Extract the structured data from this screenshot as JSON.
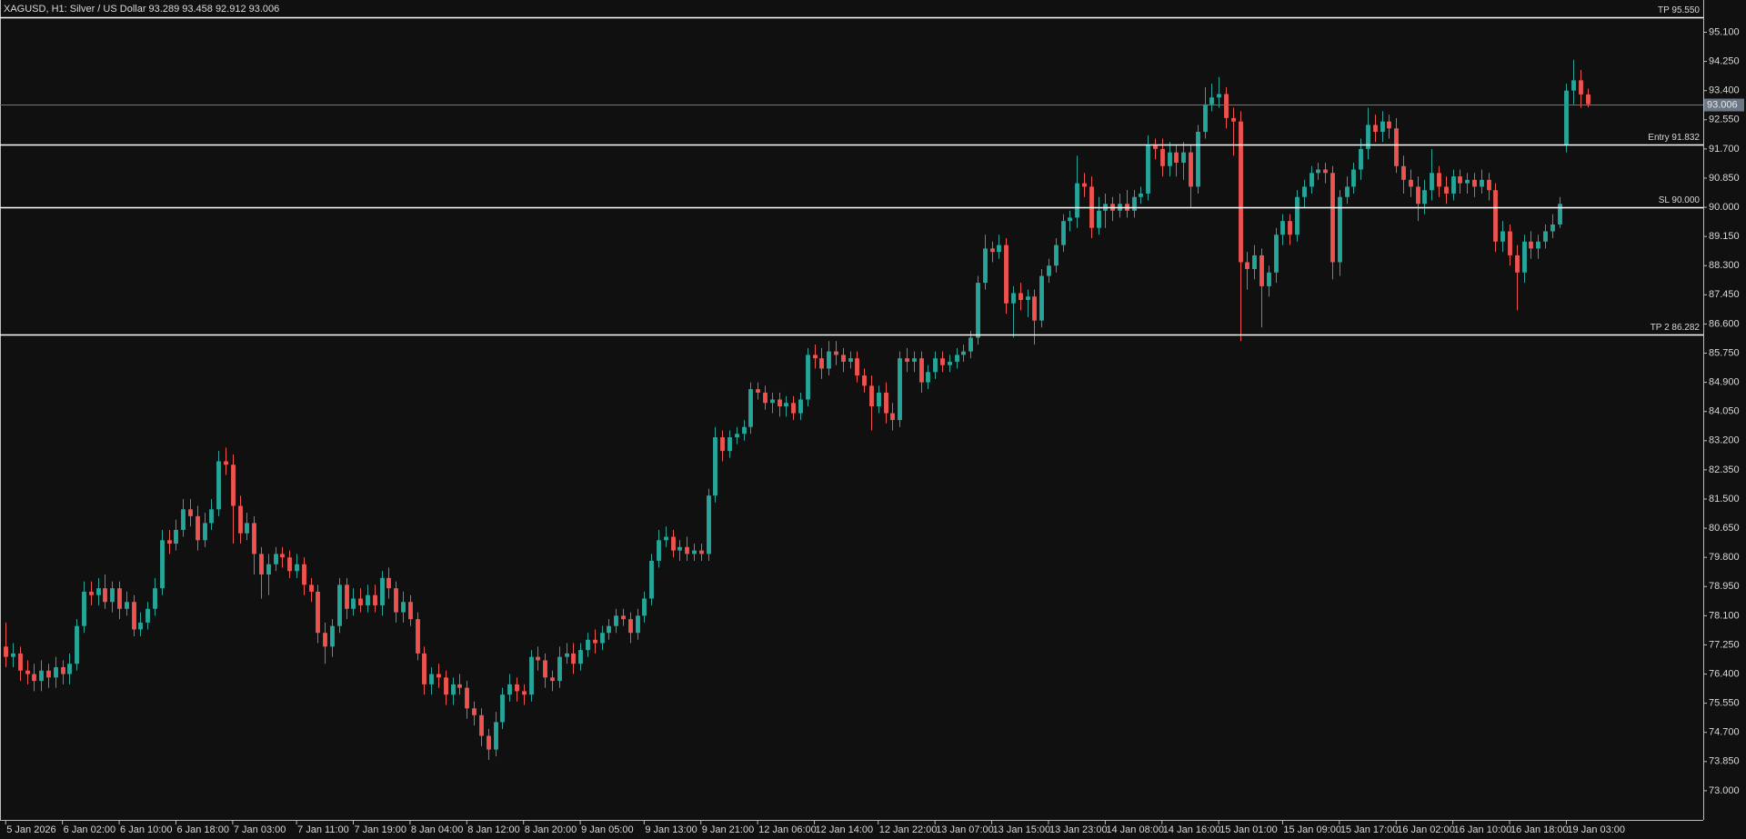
{
  "chart_data": {
    "type": "candlestick",
    "title": "XAGUSD, H1:  Silver / US Dollar  93.289 93.458 92.912 93.006",
    "up_color": "#26a69a",
    "down_color": "#ef5350",
    "open": [
      77.2,
      76.9,
      77.0,
      76.5,
      76.4,
      76.2,
      76.5,
      76.3,
      76.6,
      76.4,
      76.7,
      77.8,
      78.8,
      78.7,
      78.9,
      78.5,
      78.9,
      78.3,
      78.5,
      77.7,
      77.9,
      78.3,
      78.9,
      80.3,
      80.2,
      80.6,
      81.2,
      81.0,
      80.3,
      80.8,
      81.2,
      82.6,
      82.5,
      81.3,
      80.5,
      80.8,
      79.9,
      79.3,
      79.6,
      79.9,
      79.8,
      79.4,
      79.6,
      79.0,
      78.8,
      77.6,
      77.2,
      77.8,
      79.0,
      78.3,
      78.6,
      78.4,
      78.7,
      78.4,
      79.2,
      78.9,
      78.2,
      78.5,
      78.0,
      77.0,
      76.1,
      76.4,
      76.3,
      75.8,
      76.1,
      76.0,
      75.4,
      75.2,
      74.6,
      74.2,
      75.0,
      75.8,
      76.1,
      75.9,
      75.8,
      76.9,
      76.8,
      76.3,
      76.2,
      76.9,
      77.0,
      76.7,
      77.1,
      77.4,
      77.3,
      77.6,
      77.8,
      78.1,
      78.0,
      77.6,
      78.1,
      78.6,
      79.7,
      80.3,
      80.4,
      80.0,
      80.1,
      79.9,
      80.0,
      79.9,
      81.6,
      83.3,
      82.9,
      83.3,
      83.4,
      83.6,
      84.7,
      84.6,
      84.3,
      84.4,
      84.2,
      84.3,
      84.0,
      84.4,
      85.7,
      85.6,
      85.3,
      85.8,
      85.7,
      85.5,
      85.6,
      85.1,
      84.8,
      84.2,
      84.6,
      84.0,
      83.8,
      85.6,
      85.5,
      85.6,
      84.9,
      85.2,
      85.6,
      85.4,
      85.5,
      85.7,
      85.8,
      86.2,
      87.8,
      88.8,
      88.7,
      88.9,
      87.2,
      87.5,
      87.3,
      87.4,
      86.7,
      88.0,
      88.3,
      88.9,
      89.6,
      89.7,
      90.7,
      90.6,
      89.4,
      89.9,
      90.1,
      89.9,
      90.1,
      89.9,
      90.3,
      90.4,
      91.8,
      91.7,
      91.2,
      91.6,
      91.3,
      91.6,
      90.6,
      92.2,
      93.0,
      93.2,
      93.3,
      92.6,
      92.5,
      88.4,
      88.2,
      88.6,
      87.7,
      88.1,
      89.2,
      89.6,
      89.2,
      90.3,
      90.6,
      91.0,
      91.1,
      91.0,
      88.4,
      90.3,
      90.6,
      91.1,
      91.7,
      92.4,
      92.2,
      92.5,
      92.3,
      91.2,
      90.8,
      90.6,
      90.1,
      90.5,
      91.0,
      90.6,
      90.4,
      90.9,
      90.7,
      90.8,
      90.6,
      90.8,
      90.5,
      89.0,
      89.3,
      88.6,
      88.1,
      89.0,
      88.8,
      89.0,
      89.3,
      89.5,
      91.8,
      93.4,
      93.7,
      93.289
    ],
    "high": [
      77.9,
      77.3,
      77.2,
      76.8,
      76.7,
      76.8,
      76.7,
      76.9,
      76.8,
      77.0,
      78.0,
      79.1,
      79.1,
      79.2,
      79.3,
      79.1,
      79.1,
      78.8,
      78.7,
      78.2,
      78.5,
      79.2,
      80.6,
      80.6,
      80.9,
      81.5,
      81.5,
      81.3,
      81.1,
      81.5,
      82.9,
      83.0,
      82.8,
      81.6,
      81.1,
      81.0,
      80.1,
      79.9,
      80.1,
      80.1,
      80.0,
      79.9,
      79.8,
      79.2,
      79.0,
      77.9,
      78.0,
      79.2,
      79.2,
      78.9,
      78.9,
      79.0,
      79.0,
      79.4,
      79.5,
      79.1,
      78.8,
      78.7,
      78.2,
      77.2,
      76.6,
      76.7,
      76.5,
      76.3,
      76.4,
      76.2,
      75.6,
      75.4,
      74.8,
      75.3,
      76.0,
      76.4,
      76.3,
      76.1,
      77.1,
      77.2,
      77.0,
      76.5,
      77.2,
      77.3,
      77.3,
      77.3,
      77.6,
      77.7,
      77.8,
      78.0,
      78.3,
      78.3,
      78.2,
      78.3,
      78.8,
      79.9,
      80.6,
      80.7,
      80.6,
      80.3,
      80.4,
      80.2,
      80.2,
      81.8,
      83.6,
      83.5,
      83.5,
      83.6,
      83.8,
      84.9,
      84.9,
      84.8,
      84.6,
      84.6,
      84.5,
      84.5,
      84.6,
      85.9,
      86.0,
      85.9,
      86.1,
      86.1,
      85.9,
      85.8,
      85.8,
      85.3,
      85.1,
      84.8,
      84.9,
      84.3,
      85.8,
      85.9,
      85.8,
      85.8,
      85.4,
      85.8,
      85.8,
      85.7,
      85.9,
      86.0,
      86.4,
      88.0,
      89.2,
      89.0,
      89.2,
      89.1,
      87.7,
      87.8,
      87.6,
      87.6,
      88.2,
      88.5,
      89.1,
      89.8,
      89.9,
      91.5,
      91.0,
      90.9,
      90.3,
      90.4,
      90.3,
      90.4,
      90.5,
      90.5,
      90.6,
      92.1,
      92.0,
      92.0,
      91.9,
      91.8,
      91.9,
      91.8,
      92.4,
      93.5,
      93.6,
      93.8,
      93.5,
      92.9,
      92.8,
      88.7,
      88.9,
      88.8,
      88.3,
      89.4,
      89.8,
      89.8,
      90.5,
      90.8,
      91.2,
      91.3,
      91.3,
      91.2,
      90.5,
      90.9,
      91.3,
      92.0,
      92.9,
      92.7,
      92.8,
      92.7,
      92.6,
      91.5,
      91.1,
      90.9,
      90.8,
      91.7,
      91.2,
      90.9,
      91.1,
      91.1,
      91.0,
      91.0,
      91.1,
      91.0,
      90.7,
      89.6,
      89.5,
      88.9,
      89.2,
      89.3,
      89.2,
      89.5,
      89.8,
      90.3,
      93.6,
      94.3,
      94.0,
      93.458
    ],
    "low": [
      76.6,
      76.6,
      76.2,
      76.1,
      75.9,
      75.9,
      76.0,
      76.0,
      76.1,
      76.1,
      76.5,
      77.6,
      78.4,
      78.4,
      78.3,
      78.2,
      78.0,
      78.1,
      77.5,
      77.5,
      77.7,
      78.1,
      78.7,
      79.9,
      80.0,
      80.4,
      80.7,
      80.0,
      80.1,
      80.6,
      81.0,
      82.2,
      80.2,
      80.2,
      80.3,
      79.3,
      78.6,
      78.7,
      79.4,
      79.5,
      79.2,
      79.2,
      78.7,
      78.5,
      77.3,
      76.7,
      76.9,
      77.6,
      78.0,
      78.1,
      78.2,
      78.2,
      78.2,
      78.1,
      78.6,
      77.9,
      77.9,
      77.8,
      76.8,
      75.8,
      75.8,
      76.0,
      75.5,
      75.5,
      75.8,
      75.1,
      74.9,
      74.3,
      73.9,
      74.0,
      74.8,
      75.6,
      75.6,
      75.5,
      75.6,
      76.5,
      76.0,
      75.9,
      76.0,
      76.7,
      76.4,
      76.5,
      76.9,
      77.0,
      77.1,
      77.4,
      77.6,
      77.8,
      77.3,
      77.4,
      77.9,
      78.4,
      79.5,
      80.1,
      79.8,
      79.7,
      79.7,
      79.7,
      79.7,
      79.7,
      81.4,
      82.6,
      82.7,
      83.1,
      83.2,
      83.4,
      84.4,
      84.1,
      84.0,
      83.9,
      83.9,
      83.8,
      83.8,
      84.2,
      85.3,
      85.0,
      85.1,
      85.4,
      85.2,
      85.3,
      84.9,
      84.6,
      83.5,
      84.0,
      83.7,
      83.5,
      83.6,
      85.2,
      85.2,
      84.6,
      84.7,
      85.0,
      85.2,
      85.2,
      85.3,
      85.5,
      85.6,
      86.0,
      87.6,
      88.4,
      88.5,
      86.9,
      86.2,
      87.0,
      86.8,
      86.0,
      86.5,
      87.8,
      88.1,
      88.7,
      89.3,
      89.4,
      90.3,
      89.1,
      89.2,
      89.4,
      89.6,
      89.7,
      89.7,
      89.7,
      90.1,
      90.2,
      91.4,
      90.9,
      90.9,
      90.9,
      90.8,
      90.0,
      90.4,
      92.0,
      92.8,
      92.9,
      92.3,
      91.5,
      86.1,
      87.6,
      87.9,
      86.5,
      87.4,
      87.8,
      88.9,
      88.9,
      89.0,
      90.0,
      90.4,
      90.8,
      90.7,
      87.9,
      88.0,
      90.1,
      90.4,
      90.8,
      91.4,
      91.9,
      91.9,
      92.0,
      91.0,
      90.4,
      90.3,
      89.6,
      89.8,
      90.2,
      90.3,
      90.1,
      90.2,
      90.4,
      90.4,
      90.3,
      90.4,
      90.2,
      88.7,
      88.7,
      88.3,
      87.0,
      87.8,
      88.5,
      88.5,
      88.8,
      89.1,
      89.4,
      91.6,
      93.0,
      92.9,
      92.912
    ],
    "close": [
      76.9,
      77.0,
      76.5,
      76.4,
      76.2,
      76.5,
      76.3,
      76.6,
      76.4,
      76.7,
      77.8,
      78.8,
      78.7,
      78.9,
      78.5,
      78.9,
      78.3,
      78.5,
      77.7,
      77.9,
      78.3,
      78.9,
      80.3,
      80.2,
      80.6,
      81.2,
      81.0,
      80.3,
      80.8,
      81.2,
      82.6,
      82.5,
      81.3,
      80.5,
      80.8,
      79.9,
      79.3,
      79.6,
      79.9,
      79.8,
      79.4,
      79.6,
      79.0,
      78.8,
      77.6,
      77.2,
      77.8,
      79.0,
      78.3,
      78.6,
      78.4,
      78.7,
      78.4,
      79.2,
      78.9,
      78.2,
      78.5,
      78.0,
      77.0,
      76.1,
      76.4,
      76.3,
      75.8,
      76.1,
      76.0,
      75.4,
      75.2,
      74.6,
      74.2,
      75.0,
      75.8,
      76.1,
      75.9,
      75.8,
      76.9,
      76.8,
      76.3,
      76.2,
      76.9,
      77.0,
      76.7,
      77.1,
      77.4,
      77.3,
      77.6,
      77.8,
      78.1,
      78.0,
      77.6,
      78.1,
      78.6,
      79.7,
      80.3,
      80.4,
      80.0,
      80.1,
      79.9,
      80.0,
      79.9,
      81.6,
      83.3,
      82.9,
      83.3,
      83.4,
      83.6,
      84.7,
      84.6,
      84.3,
      84.4,
      84.2,
      84.3,
      84.0,
      84.4,
      85.7,
      85.6,
      85.3,
      85.8,
      85.7,
      85.5,
      85.6,
      85.1,
      84.8,
      84.2,
      84.6,
      84.0,
      83.8,
      85.6,
      85.5,
      85.6,
      84.9,
      85.2,
      85.6,
      85.4,
      85.5,
      85.7,
      85.8,
      86.2,
      87.8,
      88.8,
      88.7,
      88.9,
      87.2,
      87.5,
      87.3,
      87.4,
      86.7,
      88.0,
      88.3,
      88.9,
      89.6,
      89.7,
      90.7,
      90.6,
      89.4,
      89.9,
      90.1,
      89.9,
      90.1,
      89.9,
      90.3,
      90.4,
      91.8,
      91.7,
      91.2,
      91.6,
      91.3,
      91.6,
      90.6,
      92.2,
      93.0,
      93.2,
      93.3,
      92.6,
      92.5,
      88.4,
      88.2,
      88.6,
      87.7,
      88.1,
      89.2,
      89.6,
      89.2,
      90.3,
      90.6,
      91.0,
      91.1,
      91.0,
      88.4,
      90.3,
      90.6,
      91.1,
      91.7,
      92.4,
      92.2,
      92.5,
      92.3,
      91.2,
      90.8,
      90.6,
      90.1,
      90.5,
      91.0,
      90.6,
      90.4,
      90.9,
      90.7,
      90.8,
      90.6,
      90.8,
      90.5,
      89.0,
      89.3,
      88.6,
      88.1,
      89.0,
      88.8,
      89.0,
      89.3,
      89.5,
      90.1,
      93.4,
      93.7,
      93.289,
      93.006
    ],
    "xlim": [
      -0.8,
      239.3
    ],
    "xticks": [
      {
        "value": 0,
        "label": "5 Jan 2026"
      },
      {
        "value": 8,
        "label": "6 Jan 02:00"
      },
      {
        "value": 16,
        "label": "6 Jan 10:00"
      },
      {
        "value": 24,
        "label": "6 Jan 18:00"
      },
      {
        "value": 32,
        "label": "7 Jan 03:00"
      },
      {
        "value": 41,
        "label": "7 Jan 11:00"
      },
      {
        "value": 49,
        "label": "7 Jan 19:00"
      },
      {
        "value": 57,
        "label": "8 Jan 04:00"
      },
      {
        "value": 65,
        "label": "8 Jan 12:00"
      },
      {
        "value": 73,
        "label": "8 Jan 20:00"
      },
      {
        "value": 81,
        "label": "9 Jan 05:00"
      },
      {
        "value": 90,
        "label": "9 Jan 13:00"
      },
      {
        "value": 98,
        "label": "9 Jan 21:00"
      },
      {
        "value": 106,
        "label": "12 Jan 06:00"
      },
      {
        "value": 114,
        "label": "12 Jan 14:00"
      },
      {
        "value": 123,
        "label": "12 Jan 22:00"
      },
      {
        "value": 131,
        "label": "13 Jan 07:00"
      },
      {
        "value": 139,
        "label": "13 Jan 15:00"
      },
      {
        "value": 147,
        "label": "13 Jan 23:00"
      },
      {
        "value": 155,
        "label": "14 Jan 08:00"
      },
      {
        "value": 163,
        "label": "14 Jan 16:00"
      },
      {
        "value": 171,
        "label": "15 Jan 01:00"
      },
      {
        "value": 180,
        "label": "15 Jan 09:00"
      },
      {
        "value": 188,
        "label": "15 Jan 17:00"
      },
      {
        "value": 196,
        "label": "16 Jan 02:00"
      },
      {
        "value": 204,
        "label": "16 Jan 10:00"
      },
      {
        "value": 212,
        "label": "16 Jan 18:00"
      },
      {
        "value": 220,
        "label": "19 Jan 03:00"
      }
    ],
    "ylim": [
      72.15,
      96.04
    ],
    "yticks": [
      {
        "value": 95.1,
        "label": "95.100"
      },
      {
        "value": 94.25,
        "label": "94.250"
      },
      {
        "value": 93.4,
        "label": "93.400"
      },
      {
        "value": 92.55,
        "label": "92.550"
      },
      {
        "value": 91.7,
        "label": "91.700"
      },
      {
        "value": 90.85,
        "label": "90.850"
      },
      {
        "value": 90,
        "label": "90.000"
      },
      {
        "value": 89.15,
        "label": "89.150"
      },
      {
        "value": 88.3,
        "label": "88.300"
      },
      {
        "value": 87.45,
        "label": "87.450"
      },
      {
        "value": 86.6,
        "label": "86.600"
      },
      {
        "value": 85.75,
        "label": "85.750"
      },
      {
        "value": 84.9,
        "label": "84.900"
      },
      {
        "value": 84.05,
        "label": "84.050"
      },
      {
        "value": 83.2,
        "label": "83.200"
      },
      {
        "value": 82.35,
        "label": "82.350"
      },
      {
        "value": 81.5,
        "label": "81.500"
      },
      {
        "value": 80.65,
        "label": "80.650"
      },
      {
        "value": 79.8,
        "label": "79.800"
      },
      {
        "value": 78.95,
        "label": "78.950"
      },
      {
        "value": 78.1,
        "label": "78.100"
      },
      {
        "value": 77.25,
        "label": "77.250"
      },
      {
        "value": 76.4,
        "label": "76.400"
      },
      {
        "value": 75.55,
        "label": "75.550"
      },
      {
        "value": 74.7,
        "label": "74.700"
      },
      {
        "value": 73.85,
        "label": "73.850"
      },
      {
        "value": 73,
        "label": "73.000"
      }
    ],
    "levels": [
      {
        "label": "TP 95.550",
        "value": 95.55
      },
      {
        "label": "Entry 91.832",
        "value": 91.832
      },
      {
        "label": "SL 90.000",
        "value": 90.0
      },
      {
        "label": "TP 2 86.282",
        "value": 86.282
      }
    ],
    "level_color": "#ffffff",
    "current_price": {
      "label": "93.006",
      "value": 93.006
    },
    "current_price_color": "#6b7785"
  }
}
